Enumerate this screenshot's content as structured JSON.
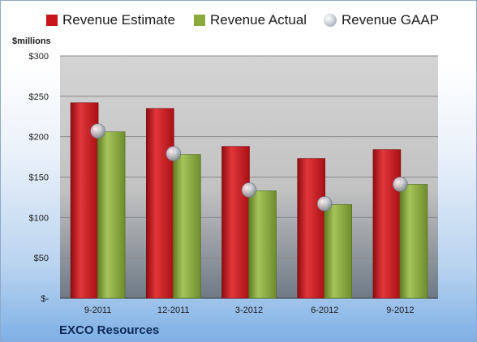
{
  "legend": {
    "estimate": "Revenue Estimate",
    "actual": "Revenue Actual",
    "gaap": "Revenue GAAP"
  },
  "unit_label": "$millions",
  "company": "EXCO Resources",
  "colors": {
    "estimate": "#c8141b",
    "actual": "#8aaa3c",
    "gaap": "#b8bec8"
  },
  "chart_data": {
    "type": "bar",
    "categories": [
      "9-2011",
      "12-2011",
      "3-2012",
      "6-2012",
      "9-2012"
    ],
    "series": [
      {
        "name": "Revenue Estimate",
        "values": [
          242,
          235,
          188,
          173,
          184
        ]
      },
      {
        "name": "Revenue Actual",
        "values": [
          206,
          178,
          133,
          116,
          141
        ]
      },
      {
        "name": "Revenue GAAP",
        "values": [
          207,
          179,
          134,
          117,
          141
        ]
      }
    ],
    "ylabel": "$millions",
    "ylim": [
      0,
      300
    ],
    "yticks": [
      0,
      50,
      100,
      150,
      200,
      250,
      300
    ],
    "ytick_labels": [
      "$-",
      "$50",
      "$100",
      "$150",
      "$200",
      "$250",
      "$300"
    ],
    "grid": true,
    "legend_position": "top"
  }
}
